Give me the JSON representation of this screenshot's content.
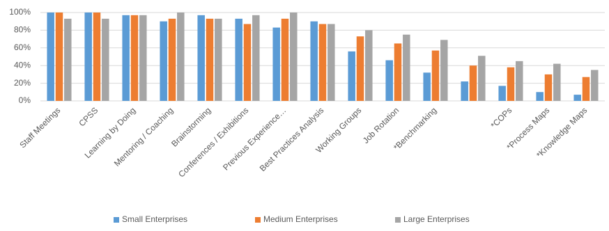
{
  "chart_data": {
    "type": "bar",
    "categories": [
      "Staff Meetings",
      "CPSS",
      "Learning by Doing",
      "Mentoring / Coaching",
      "Brainstorming",
      "Conferences / Exhibitions",
      "Previous Experience…",
      "Best Practices Analysis",
      "Working Groups",
      "Job Rotation",
      "*Benchmarking",
      null,
      "*COPs",
      "*Process Maps",
      "*Knowledge Maps"
    ],
    "series": [
      {
        "name": "Small Enterprises",
        "color": "#5b9bd5",
        "values": [
          100,
          100,
          97,
          90,
          97,
          93,
          83,
          90,
          56,
          46,
          32,
          22,
          17,
          10,
          7
        ]
      },
      {
        "name": "Medium Enterprises",
        "color": "#ed7d31",
        "values": [
          100,
          100,
          97,
          93,
          93,
          87,
          93,
          87,
          73,
          65,
          57,
          40,
          38,
          30,
          27
        ]
      },
      {
        "name": "Large Enterprises",
        "color": "#a5a5a5",
        "values": [
          93,
          93,
          97,
          100,
          93,
          97,
          100,
          87,
          80,
          75,
          69,
          51,
          45,
          42,
          35
        ]
      }
    ],
    "ylim": [
      0,
      100
    ],
    "yticks": [
      {
        "value": 0,
        "label": "0%"
      },
      {
        "value": 20,
        "label": "20%"
      },
      {
        "value": 40,
        "label": "40%"
      },
      {
        "value": 60,
        "label": "60%"
      },
      {
        "value": 80,
        "label": "80%"
      },
      {
        "value": 100,
        "label": "100%"
      }
    ],
    "grid": true,
    "legend": "bottom"
  }
}
